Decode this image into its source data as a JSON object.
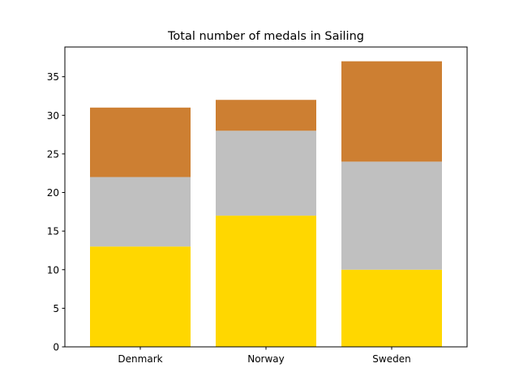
{
  "chart_data": {
    "type": "bar",
    "stacked": true,
    "title": "Total number of medals in Sailing",
    "xlabel": "",
    "ylabel": "",
    "categories": [
      "Denmark",
      "Norway",
      "Sweden"
    ],
    "series": [
      {
        "values": [
          13,
          17,
          10
        ],
        "color": "#ffd700"
      },
      {
        "values": [
          9,
          11,
          14
        ],
        "color": "#c0c0c0"
      },
      {
        "values": [
          9,
          4,
          13
        ],
        "color": "#cd7f32"
      }
    ],
    "ylim": [
      0,
      38.85
    ],
    "yticks": [
      0,
      5,
      10,
      15,
      20,
      25,
      30,
      35
    ],
    "grid": false,
    "legend": "none"
  }
}
